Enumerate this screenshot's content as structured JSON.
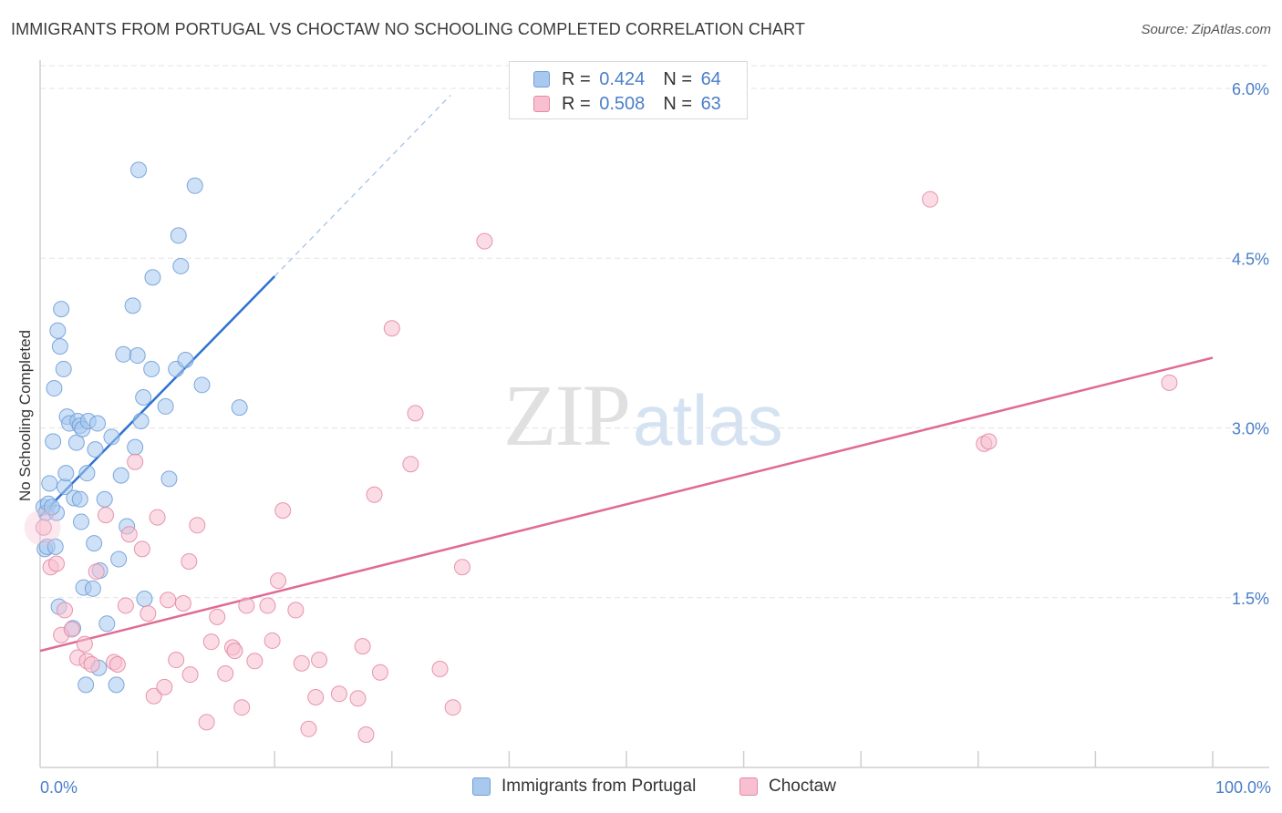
{
  "title": "IMMIGRANTS FROM PORTUGAL VS CHOCTAW NO SCHOOLING COMPLETED CORRELATION CHART",
  "source": "Source: ZipAtlas.com",
  "watermark": {
    "zip": "ZIP",
    "atlas": "atlas"
  },
  "colors": {
    "blue_fill": "#a8c8ee",
    "blue_stroke": "#6f9fd8",
    "blue_line": "#2e72d2",
    "pink_fill": "#f7bfd0",
    "pink_stroke": "#e48aa6",
    "pink_line": "#e06b95",
    "tick_label": "#4a7fc8",
    "grid": "#e3e3e3"
  },
  "legend_top": [
    {
      "r_label": "R = ",
      "r_value": "0.424",
      "n_label": "N = ",
      "n_value": "64",
      "color": "blue"
    },
    {
      "r_label": "R = ",
      "r_value": "0.508",
      "n_label": "N = ",
      "n_value": "63",
      "color": "pink"
    }
  ],
  "legend_bottom": [
    {
      "label": "Immigrants from Portugal",
      "color": "blue"
    },
    {
      "label": "Choctaw",
      "color": "pink"
    }
  ],
  "chart_data": {
    "type": "scatter",
    "title": "IMMIGRANTS FROM PORTUGAL VS CHOCTAW NO SCHOOLING COMPLETED CORRELATION CHART",
    "xlabel": "",
    "ylabel": "No Schooling Completed",
    "xlim": [
      0,
      100
    ],
    "ylim": [
      0,
      6.2
    ],
    "x_tick_labels": [
      {
        "value": 0,
        "label": "0.0%"
      },
      {
        "value": 100,
        "label": "100.0%"
      }
    ],
    "y_tick_labels": [
      {
        "value": 1.5,
        "label": "1.5%"
      },
      {
        "value": 3.0,
        "label": "3.0%"
      },
      {
        "value": 4.5,
        "label": "4.5%"
      },
      {
        "value": 6.0,
        "label": "6.0%"
      }
    ],
    "x_minor_ticks": [
      10,
      20,
      30,
      40,
      50,
      60,
      70,
      80,
      90,
      100
    ],
    "grid": true,
    "legend_position": "top-center",
    "series": [
      {
        "name": "Immigrants from Portugal",
        "color": "blue",
        "trend": {
          "x0": 0,
          "y0": 2.22,
          "x1": 20,
          "y1": 4.34,
          "dashed_to_x": 35,
          "dashed_to_y": 5.94
        },
        "points": [
          [
            0.3,
            2.3
          ],
          [
            0.5,
            2.25
          ],
          [
            0.4,
            1.93
          ],
          [
            0.6,
            1.95
          ],
          [
            0.7,
            2.33
          ],
          [
            0.8,
            2.51
          ],
          [
            1.1,
            2.88
          ],
          [
            1.2,
            3.35
          ],
          [
            1.5,
            3.86
          ],
          [
            1.7,
            3.72
          ],
          [
            1.8,
            4.05
          ],
          [
            2.0,
            3.52
          ],
          [
            2.1,
            2.48
          ],
          [
            2.2,
            2.6
          ],
          [
            2.3,
            3.1
          ],
          [
            2.5,
            3.04
          ],
          [
            1.4,
            2.25
          ],
          [
            1.3,
            1.95
          ],
          [
            1.6,
            1.42
          ],
          [
            2.8,
            1.23
          ],
          [
            2.9,
            2.38
          ],
          [
            3.1,
            2.87
          ],
          [
            3.2,
            3.06
          ],
          [
            3.4,
            3.02
          ],
          [
            3.4,
            2.37
          ],
          [
            3.5,
            2.17
          ],
          [
            3.6,
            2.99
          ],
          [
            3.7,
            1.59
          ],
          [
            3.9,
            0.73
          ],
          [
            4.0,
            2.6
          ],
          [
            4.1,
            3.06
          ],
          [
            4.5,
            1.58
          ],
          [
            4.6,
            1.98
          ],
          [
            4.7,
            2.81
          ],
          [
            4.9,
            3.04
          ],
          [
            5.0,
            0.88
          ],
          [
            5.1,
            1.74
          ],
          [
            5.5,
            2.37
          ],
          [
            5.7,
            1.27
          ],
          [
            6.1,
            2.92
          ],
          [
            6.5,
            0.73
          ],
          [
            6.7,
            1.84
          ],
          [
            6.9,
            2.58
          ],
          [
            7.1,
            3.65
          ],
          [
            7.4,
            2.13
          ],
          [
            7.9,
            4.08
          ],
          [
            8.1,
            2.83
          ],
          [
            8.3,
            3.64
          ],
          [
            8.4,
            5.28
          ],
          [
            8.6,
            3.06
          ],
          [
            8.8,
            3.27
          ],
          [
            8.9,
            1.49
          ],
          [
            9.5,
            3.52
          ],
          [
            9.6,
            4.33
          ],
          [
            10.7,
            3.19
          ],
          [
            11.0,
            2.55
          ],
          [
            11.6,
            3.52
          ],
          [
            11.8,
            4.7
          ],
          [
            12.0,
            4.43
          ],
          [
            12.4,
            3.6
          ],
          [
            13.2,
            5.14
          ],
          [
            13.8,
            3.38
          ],
          [
            17.0,
            3.18
          ],
          [
            1.0,
            2.3
          ]
        ]
      },
      {
        "name": "Choctaw",
        "color": "pink",
        "trend": {
          "x0": 0,
          "y0": 1.03,
          "x1": 100,
          "y1": 3.62
        },
        "points": [
          [
            0.3,
            2.12
          ],
          [
            0.9,
            1.77
          ],
          [
            1.4,
            1.8
          ],
          [
            1.8,
            1.17
          ],
          [
            2.1,
            1.39
          ],
          [
            2.7,
            1.22
          ],
          [
            3.2,
            0.97
          ],
          [
            3.8,
            1.09
          ],
          [
            4.0,
            0.94
          ],
          [
            4.4,
            0.91
          ],
          [
            4.8,
            1.73
          ],
          [
            5.6,
            2.23
          ],
          [
            6.3,
            0.93
          ],
          [
            6.6,
            0.91
          ],
          [
            7.3,
            1.43
          ],
          [
            7.6,
            2.06
          ],
          [
            8.1,
            2.7
          ],
          [
            8.7,
            1.93
          ],
          [
            9.2,
            1.36
          ],
          [
            9.7,
            0.63
          ],
          [
            10.0,
            2.21
          ],
          [
            10.6,
            0.71
          ],
          [
            10.9,
            1.48
          ],
          [
            11.6,
            0.95
          ],
          [
            12.2,
            1.45
          ],
          [
            12.7,
            1.82
          ],
          [
            12.8,
            0.82
          ],
          [
            13.4,
            2.14
          ],
          [
            14.2,
            0.4
          ],
          [
            14.6,
            1.11
          ],
          [
            15.1,
            1.33
          ],
          [
            15.8,
            0.83
          ],
          [
            16.4,
            1.06
          ],
          [
            16.6,
            1.03
          ],
          [
            17.2,
            0.53
          ],
          [
            17.6,
            1.43
          ],
          [
            18.3,
            0.94
          ],
          [
            19.4,
            1.43
          ],
          [
            19.8,
            1.12
          ],
          [
            20.3,
            1.65
          ],
          [
            20.7,
            2.27
          ],
          [
            21.8,
            1.39
          ],
          [
            22.3,
            0.92
          ],
          [
            22.9,
            0.34
          ],
          [
            23.5,
            0.62
          ],
          [
            23.8,
            0.95
          ],
          [
            25.5,
            0.65
          ],
          [
            27.1,
            0.61
          ],
          [
            27.5,
            1.07
          ],
          [
            27.8,
            0.29
          ],
          [
            28.5,
            2.41
          ],
          [
            29.0,
            0.84
          ],
          [
            30.0,
            3.88
          ],
          [
            31.6,
            2.68
          ],
          [
            32.0,
            3.13
          ],
          [
            34.1,
            0.87
          ],
          [
            35.2,
            0.53
          ],
          [
            36.0,
            1.77
          ],
          [
            37.9,
            4.65
          ],
          [
            75.9,
            5.02
          ],
          [
            80.5,
            2.86
          ],
          [
            80.9,
            2.88
          ],
          [
            96.3,
            3.4
          ]
        ]
      }
    ]
  }
}
